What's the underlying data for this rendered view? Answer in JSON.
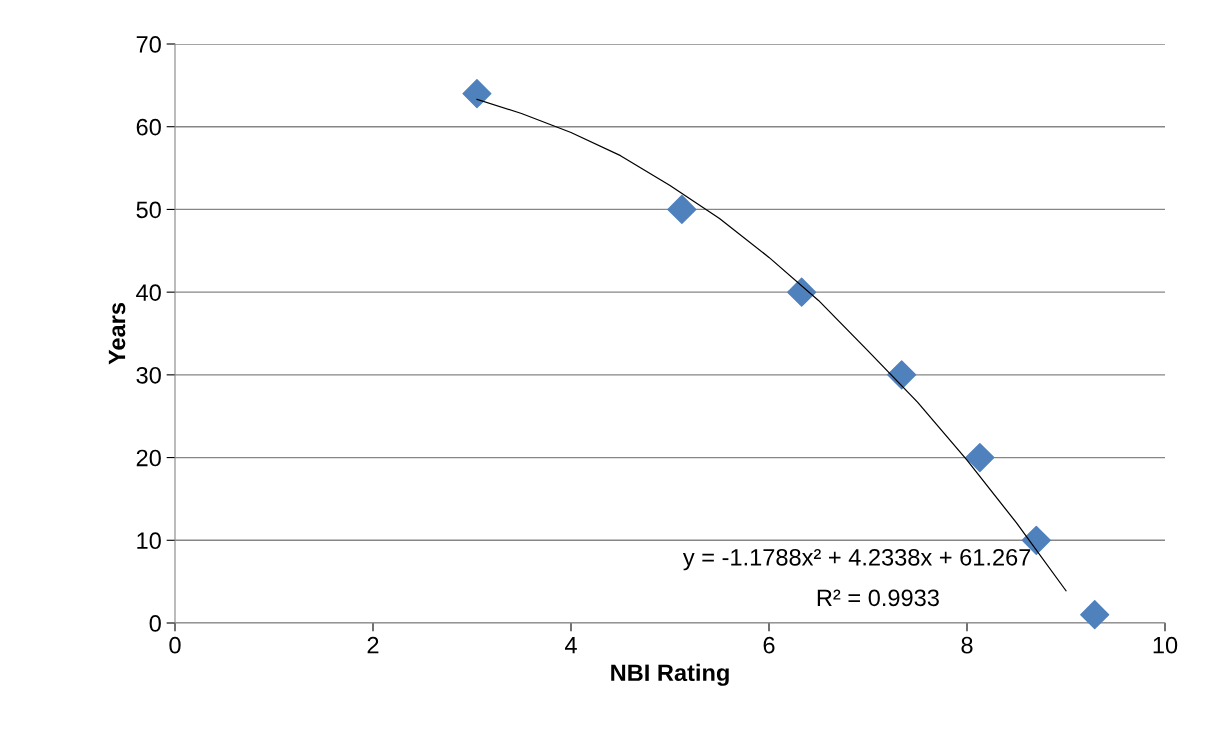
{
  "chart_data": {
    "type": "scatter",
    "xlabel": "NBI Rating",
    "ylabel": "Years",
    "series": [
      {
        "color": "#4f81bd",
        "marker": "diamond",
        "x": [
          3.05,
          5.12,
          6.33,
          7.34,
          8.13,
          8.7,
          9.29
        ],
        "values": [
          64,
          50,
          40,
          30,
          20,
          10,
          1
        ]
      },
      {
        "type": "line",
        "color": "#000000",
        "marker": "none",
        "line_style": "solid",
        "x": [
          3.05,
          3.5,
          4,
          4.5,
          5,
          5.5,
          6,
          6.5,
          7,
          7.5,
          8,
          8.5,
          9
        ],
        "values": [
          63.3,
          61.6,
          59.3,
          56.5,
          52.9,
          48.9,
          44.2,
          39.0,
          32.9,
          26.7,
          19.7,
          12.1,
          3.9
        ]
      }
    ],
    "annotations": [
      "y = -1.1788x² + 4.2338x + 61.267",
      "R² = 0.9933"
    ],
    "xlim": [
      0,
      10
    ],
    "xticks": [
      0,
      2,
      4,
      6,
      8,
      10
    ],
    "ylim": [
      0,
      70
    ],
    "yticks": [
      0,
      10,
      20,
      30,
      40,
      50,
      60,
      70
    ],
    "grid": "y",
    "legend": false
  }
}
